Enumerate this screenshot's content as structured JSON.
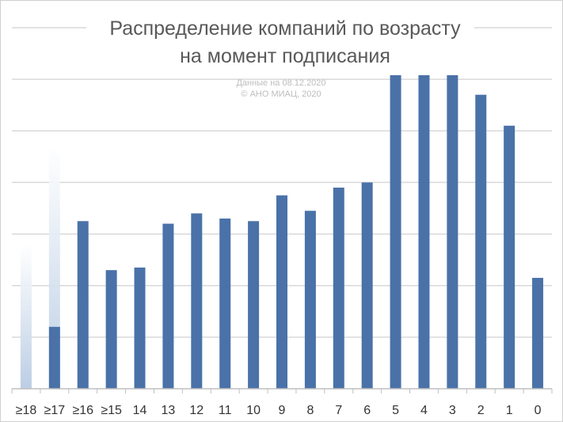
{
  "chart_data": {
    "type": "bar",
    "title_line1": "Распределение компаний по возрасту",
    "title_line2": "на момент подписания",
    "note_line1": "Данные на 08.12.2020",
    "note_line2": "© АНО МИАЦ, 2020",
    "categories": [
      "≥18",
      "≥17",
      "≥16",
      "≥15",
      "14",
      "13",
      "12",
      "11",
      "10",
      "9",
      "8",
      "7",
      "6",
      "5",
      "4",
      "3",
      "2",
      "1",
      "0"
    ],
    "values": [
      0,
      1.2,
      3.25,
      2.3,
      2.35,
      3.2,
      3.4,
      3.3,
      3.25,
      3.75,
      3.45,
      3.9,
      4.0,
      6.1,
      6.2,
      6.2,
      5.7,
      5.1,
      2.15
    ],
    "ghost_values": [
      2.8,
      4.7,
      1.8,
      0.05
    ],
    "ylim": [
      0,
      7
    ],
    "grid": true,
    "y_axis_labels_visible": false,
    "bar_color": "#4a72a8",
    "ghost_color": "#c5d4e8",
    "grid_color": "#d9d9d9"
  }
}
